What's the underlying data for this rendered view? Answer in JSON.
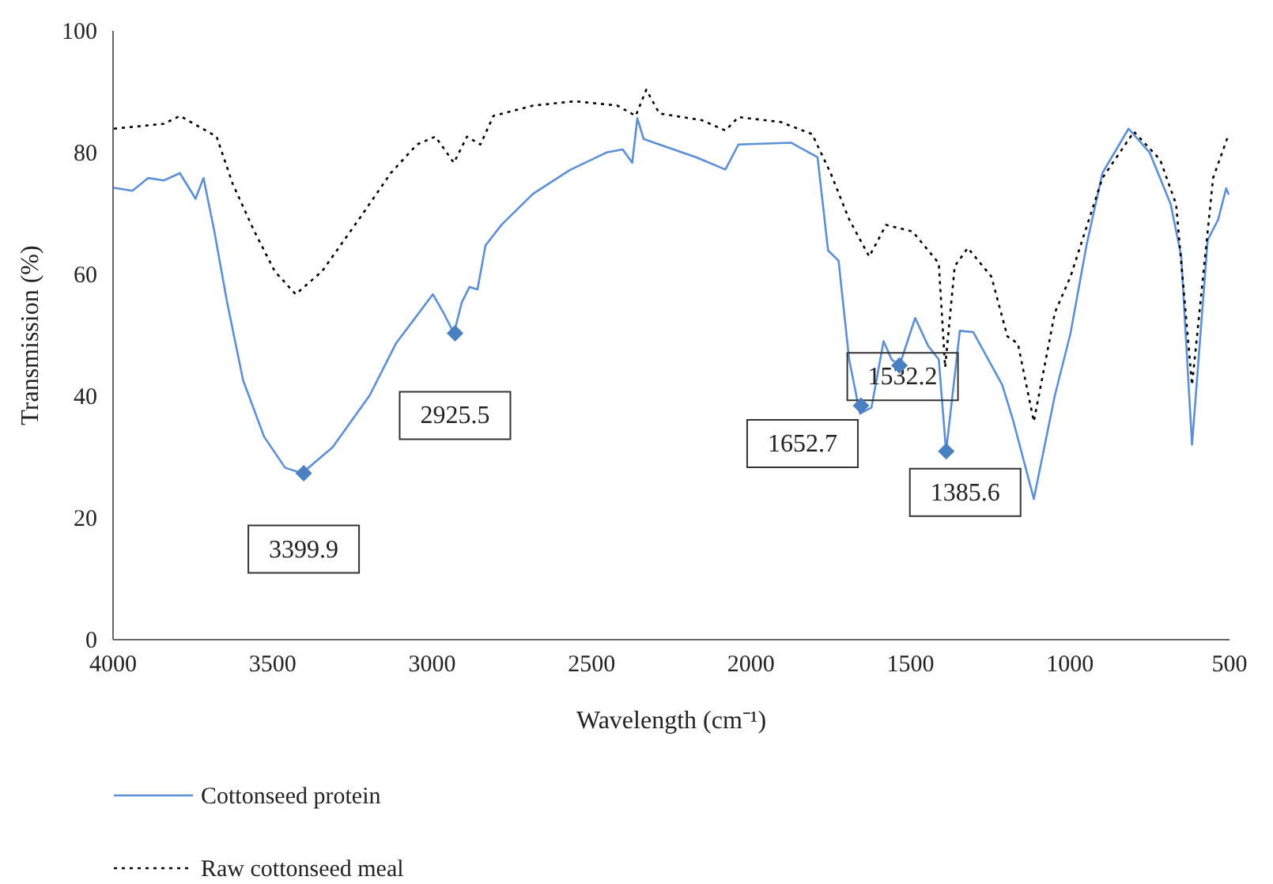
{
  "chart_data": {
    "type": "line",
    "xlabel": "Wavelength (cm⁻¹)",
    "ylabel": "Transmission (%)",
    "xlim": [
      4000,
      500
    ],
    "xticks": [
      4000,
      3500,
      3000,
      2500,
      2000,
      1500,
      1000,
      500
    ],
    "ylim": [
      0,
      100
    ],
    "yticks": [
      0,
      20,
      40,
      60,
      80,
      100
    ],
    "grid": false,
    "legend": "bottom",
    "series": [
      {
        "name": "Cottonseed protein",
        "color": "#5b8fd6",
        "line_style": "solid",
        "x": [
          3995,
          3937,
          3887,
          3838,
          3788,
          3739,
          3714,
          3681,
          3640,
          3590,
          3524,
          3458,
          3405,
          3309,
          3193,
          3111,
          2995,
          2962,
          2929,
          2904,
          2880,
          2855,
          2830,
          2780,
          2681,
          2566,
          2450,
          2400,
          2370,
          2354,
          2334,
          2285,
          2169,
          2078,
          2037,
          1872,
          1789,
          1756,
          1723,
          1690,
          1656,
          1620,
          1582,
          1557,
          1532,
          1483,
          1442,
          1409,
          1386,
          1343,
          1301,
          1210,
          1177,
          1111,
          1045,
          996,
          946,
          896,
          814,
          748,
          682,
          649,
          615,
          566,
          533,
          508,
          500
        ],
        "values": [
          74.1,
          73.6,
          75.7,
          75.3,
          76.5,
          72.3,
          75.7,
          67.2,
          55.3,
          42.5,
          33.2,
          28.1,
          27.2,
          31.5,
          40,
          48.5,
          56.6,
          53.6,
          50.2,
          55.3,
          57.8,
          57.4,
          64.6,
          68,
          73.1,
          77,
          79.9,
          80.4,
          78.2,
          85.5,
          82.1,
          81.2,
          79.1,
          77.1,
          81.2,
          81.5,
          79.1,
          63.8,
          62.1,
          45.9,
          37,
          38,
          48.9,
          45.9,
          44.9,
          52.7,
          48.1,
          45.9,
          30.8,
          50.6,
          50.4,
          41.7,
          36.1,
          23,
          40,
          50.2,
          64.6,
          76.5,
          83.8,
          79.9,
          71.4,
          62.9,
          31.9,
          65.5,
          68.9,
          74,
          73
        ]
      },
      {
        "name": "Raw cottonseed meal",
        "color": "#000000",
        "line_style": "dotted",
        "x": [
          3995,
          3838,
          3788,
          3673,
          3623,
          3557,
          3491,
          3425,
          3342,
          3227,
          3127,
          3045,
          2987,
          2929,
          2888,
          2846,
          2805,
          2681,
          2549,
          2417,
          2359,
          2326,
          2285,
          2152,
          2078,
          2037,
          1905,
          1806,
          1748,
          1690,
          1627,
          1574,
          1491,
          1409,
          1389,
          1359,
          1318,
          1244,
          1194,
          1161,
          1111,
          1045,
          996,
          896,
          797,
          715,
          665,
          615,
          549,
          500
        ],
        "values": [
          83.8,
          84.6,
          85.9,
          82.5,
          74.8,
          67.2,
          60.4,
          56.6,
          60.4,
          68.9,
          76.5,
          81.2,
          82.5,
          78.2,
          82.5,
          81.2,
          85.9,
          87.6,
          88.3,
          87.6,
          85.9,
          90.2,
          86.3,
          85.2,
          83.5,
          85.7,
          84.9,
          82.9,
          76.5,
          68.9,
          62.8,
          68,
          66.9,
          61.7,
          44.6,
          61.2,
          64.2,
          59.5,
          49.7,
          48.5,
          35.7,
          53.6,
          59.5,
          75.7,
          83.3,
          78.7,
          71.4,
          41.7,
          75.7,
          82.9
        ]
      },
      {
        "type": "scatter",
        "color": "#4a7fc1",
        "marker": "diamond",
        "x": [
          3399.9,
          2925.5,
          1652.7,
          1532.2,
          1385.6
        ],
        "values": [
          27.2,
          50.2,
          38.3,
          44.9,
          30.8
        ]
      }
    ],
    "annotations": [
      {
        "text": "3399.9",
        "x": 3399.9,
        "y": 27.2
      },
      {
        "text": "2925.5",
        "x": 2925.5,
        "y": 50.2
      },
      {
        "text": "1652.7",
        "x": 1652.7,
        "y": 38.3
      },
      {
        "text": "1532.2",
        "x": 1532.2,
        "y": 44.9
      },
      {
        "text": "1385.6",
        "x": 1385.6,
        "y": 30.8
      }
    ]
  }
}
